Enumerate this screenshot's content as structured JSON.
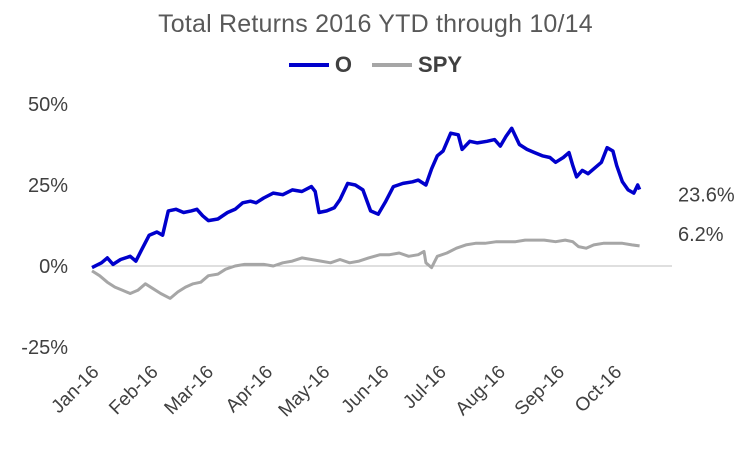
{
  "chart_data": {
    "type": "line",
    "title": "Total Returns 2016 YTD through 10/14",
    "xlabel": "",
    "ylabel": "",
    "ylim": [
      -25,
      50
    ],
    "y_ticks": [
      "50%",
      "25%",
      "0%",
      "-25%"
    ],
    "y_tick_values": [
      50,
      25,
      0,
      -25
    ],
    "x_ticks": [
      "Jan-16",
      "Feb-16",
      "Mar-16",
      "Apr-16",
      "May-16",
      "Jun-16",
      "Jul-16",
      "Aug-16",
      "Sep-16",
      "Oct-16"
    ],
    "x_domain": [
      "2016-01-01",
      "2016-10-31"
    ],
    "legend_position": "top-center",
    "grid": false,
    "series": [
      {
        "name": "O",
        "color": "#0000CC",
        "end_label": "23.6%",
        "points": [
          [
            "2016-01-01",
            -0.5
          ],
          [
            "2016-01-06",
            1.0
          ],
          [
            "2016-01-09",
            2.5
          ],
          [
            "2016-01-12",
            0.5
          ],
          [
            "2016-01-16",
            2.0
          ],
          [
            "2016-01-21",
            3.0
          ],
          [
            "2016-01-24",
            1.5
          ],
          [
            "2016-01-27",
            5.0
          ],
          [
            "2016-01-31",
            9.5
          ],
          [
            "2016-02-04",
            10.5
          ],
          [
            "2016-02-07",
            9.5
          ],
          [
            "2016-02-10",
            17.0
          ],
          [
            "2016-02-14",
            17.5
          ],
          [
            "2016-02-18",
            16.5
          ],
          [
            "2016-02-22",
            17.0
          ],
          [
            "2016-02-25",
            17.5
          ],
          [
            "2016-02-28",
            15.5
          ],
          [
            "2016-03-02",
            14.0
          ],
          [
            "2016-03-07",
            14.5
          ],
          [
            "2016-03-12",
            16.5
          ],
          [
            "2016-03-16",
            17.5
          ],
          [
            "2016-03-20",
            19.5
          ],
          [
            "2016-03-24",
            20.0
          ],
          [
            "2016-03-27",
            19.5
          ],
          [
            "2016-03-31",
            21.0
          ],
          [
            "2016-04-05",
            22.5
          ],
          [
            "2016-04-10",
            22.0
          ],
          [
            "2016-04-15",
            23.5
          ],
          [
            "2016-04-20",
            23.0
          ],
          [
            "2016-04-25",
            24.5
          ],
          [
            "2016-04-27",
            23.0
          ],
          [
            "2016-04-29",
            16.5
          ],
          [
            "2016-05-03",
            17.0
          ],
          [
            "2016-05-07",
            18.0
          ],
          [
            "2016-05-10",
            20.5
          ],
          [
            "2016-05-14",
            25.5
          ],
          [
            "2016-05-18",
            25.0
          ],
          [
            "2016-05-22",
            23.5
          ],
          [
            "2016-05-26",
            17.0
          ],
          [
            "2016-05-30",
            16.0
          ],
          [
            "2016-06-03",
            20.0
          ],
          [
            "2016-06-07",
            24.5
          ],
          [
            "2016-06-12",
            25.5
          ],
          [
            "2016-06-17",
            26.0
          ],
          [
            "2016-06-20",
            26.5
          ],
          [
            "2016-06-24",
            25.0
          ],
          [
            "2016-06-27",
            30.0
          ],
          [
            "2016-06-30",
            34.0
          ],
          [
            "2016-07-03",
            35.5
          ],
          [
            "2016-07-07",
            41.0
          ],
          [
            "2016-07-11",
            40.5
          ],
          [
            "2016-07-13",
            36.0
          ],
          [
            "2016-07-17",
            38.5
          ],
          [
            "2016-07-21",
            38.0
          ],
          [
            "2016-07-26",
            38.5
          ],
          [
            "2016-07-30",
            39.0
          ],
          [
            "2016-08-02",
            37.0
          ],
          [
            "2016-08-05",
            40.0
          ],
          [
            "2016-08-08",
            42.5
          ],
          [
            "2016-08-12",
            37.5
          ],
          [
            "2016-08-16",
            36.0
          ],
          [
            "2016-08-20",
            35.0
          ],
          [
            "2016-08-24",
            34.0
          ],
          [
            "2016-08-28",
            33.5
          ],
          [
            "2016-08-31",
            32.0
          ],
          [
            "2016-09-04",
            33.5
          ],
          [
            "2016-09-07",
            35.0
          ],
          [
            "2016-09-09",
            31.0
          ],
          [
            "2016-09-11",
            27.5
          ],
          [
            "2016-09-14",
            29.5
          ],
          [
            "2016-09-17",
            28.5
          ],
          [
            "2016-09-20",
            30.0
          ],
          [
            "2016-09-24",
            32.0
          ],
          [
            "2016-09-27",
            36.5
          ],
          [
            "2016-09-30",
            35.5
          ],
          [
            "2016-10-02",
            31.0
          ],
          [
            "2016-10-05",
            26.0
          ],
          [
            "2016-10-08",
            23.5
          ],
          [
            "2016-10-11",
            22.5
          ],
          [
            "2016-10-13",
            25.0
          ],
          [
            "2016-10-14",
            23.6
          ]
        ]
      },
      {
        "name": "SPY",
        "color": "#A6A6A6",
        "end_label": "6.2%",
        "points": [
          [
            "2016-01-01",
            -1.5
          ],
          [
            "2016-01-05",
            -3.0
          ],
          [
            "2016-01-09",
            -5.0
          ],
          [
            "2016-01-13",
            -6.5
          ],
          [
            "2016-01-17",
            -7.5
          ],
          [
            "2016-01-21",
            -8.5
          ],
          [
            "2016-01-25",
            -7.5
          ],
          [
            "2016-01-29",
            -5.5
          ],
          [
            "2016-02-02",
            -7.0
          ],
          [
            "2016-02-06",
            -8.5
          ],
          [
            "2016-02-11",
            -10.0
          ],
          [
            "2016-02-15",
            -8.0
          ],
          [
            "2016-02-19",
            -6.5
          ],
          [
            "2016-02-23",
            -5.5
          ],
          [
            "2016-02-27",
            -5.0
          ],
          [
            "2016-03-02",
            -3.0
          ],
          [
            "2016-03-07",
            -2.5
          ],
          [
            "2016-03-11",
            -1.0
          ],
          [
            "2016-03-16",
            0.0
          ],
          [
            "2016-03-21",
            0.5
          ],
          [
            "2016-03-26",
            0.5
          ],
          [
            "2016-03-31",
            0.5
          ],
          [
            "2016-04-05",
            0.0
          ],
          [
            "2016-04-10",
            1.0
          ],
          [
            "2016-04-15",
            1.5
          ],
          [
            "2016-04-20",
            2.5
          ],
          [
            "2016-04-25",
            2.0
          ],
          [
            "2016-04-30",
            1.5
          ],
          [
            "2016-05-05",
            1.0
          ],
          [
            "2016-05-10",
            2.0
          ],
          [
            "2016-05-15",
            1.0
          ],
          [
            "2016-05-20",
            1.5
          ],
          [
            "2016-05-25",
            2.5
          ],
          [
            "2016-05-31",
            3.5
          ],
          [
            "2016-06-05",
            3.5
          ],
          [
            "2016-06-10",
            4.0
          ],
          [
            "2016-06-15",
            3.0
          ],
          [
            "2016-06-20",
            3.5
          ],
          [
            "2016-06-23",
            4.5
          ],
          [
            "2016-06-24",
            1.0
          ],
          [
            "2016-06-27",
            -0.5
          ],
          [
            "2016-06-30",
            3.0
          ],
          [
            "2016-07-05",
            4.0
          ],
          [
            "2016-07-10",
            5.5
          ],
          [
            "2016-07-15",
            6.5
          ],
          [
            "2016-07-20",
            7.0
          ],
          [
            "2016-07-25",
            7.0
          ],
          [
            "2016-07-31",
            7.5
          ],
          [
            "2016-08-05",
            7.5
          ],
          [
            "2016-08-10",
            7.5
          ],
          [
            "2016-08-15",
            8.0
          ],
          [
            "2016-08-20",
            8.0
          ],
          [
            "2016-08-25",
            8.0
          ],
          [
            "2016-08-31",
            7.5
          ],
          [
            "2016-09-05",
            8.0
          ],
          [
            "2016-09-09",
            7.5
          ],
          [
            "2016-09-12",
            6.0
          ],
          [
            "2016-09-16",
            5.5
          ],
          [
            "2016-09-20",
            6.5
          ],
          [
            "2016-09-25",
            7.0
          ],
          [
            "2016-09-30",
            7.0
          ],
          [
            "2016-10-05",
            7.0
          ],
          [
            "2016-10-10",
            6.5
          ],
          [
            "2016-10-14",
            6.2
          ]
        ]
      }
    ]
  }
}
